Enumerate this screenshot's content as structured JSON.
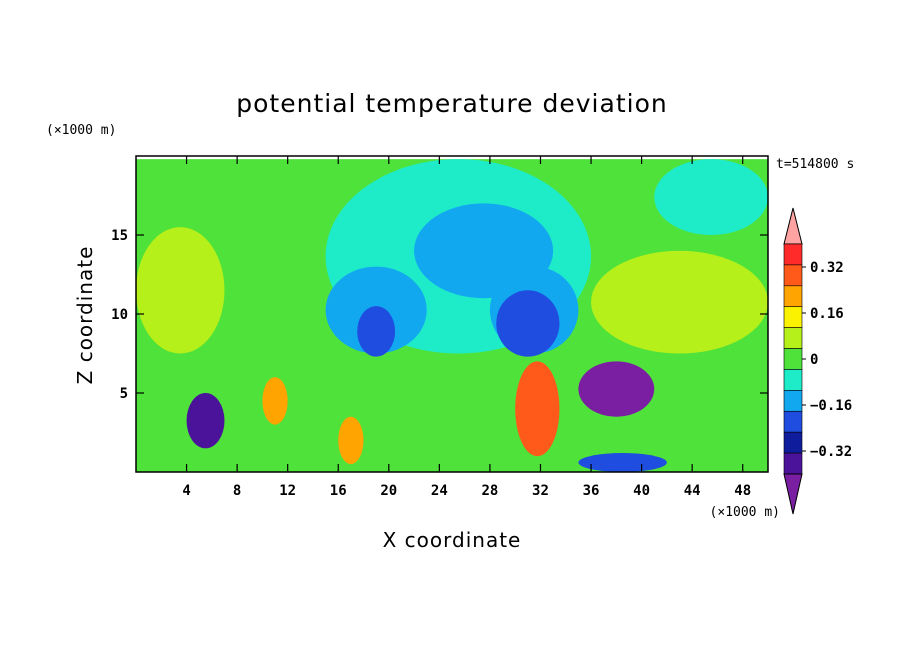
{
  "chart_data": {
    "type": "heatmap",
    "title": "potential temperature deviation",
    "xlabel": "X coordinate",
    "ylabel": "Z coordinate",
    "x_unit": "(×1000 m)",
    "y_unit": "(×1000 m)",
    "time_label": "t=514800 s",
    "xlim": [
      0,
      50
    ],
    "ylim": [
      0,
      20
    ],
    "x_ticks": [
      4,
      8,
      12,
      16,
      20,
      24,
      28,
      32,
      36,
      40,
      44,
      48
    ],
    "y_ticks": [
      5,
      10,
      15
    ],
    "colorbar": {
      "levels": [
        -0.4,
        -0.32,
        -0.24,
        -0.16,
        -0.08,
        0,
        0.08,
        0.16,
        0.24,
        0.32,
        0.4
      ],
      "tick_labels": [
        "0.32",
        "0.16",
        "0",
        "−0.16",
        "−0.32"
      ],
      "tick_values": [
        0.32,
        0.16,
        0,
        -0.16,
        -0.32
      ],
      "colors": [
        "#7a1fa2",
        "#4a1399",
        "#0f1d9c",
        "#1f4de0",
        "#12a8f0",
        "#1eecc8",
        "#4fe23a",
        "#b6f01a",
        "#fbf200",
        "#ffa400",
        "#ff5a1a",
        "#ff2a2a",
        "#ffa3a3"
      ]
    },
    "regions": [
      {
        "level": 0.08,
        "x": [
          0,
          50
        ],
        "z": [
          0,
          19.8
        ]
      },
      {
        "level": 0.16,
        "x": [
          0,
          7
        ],
        "z": [
          7.5,
          15.5
        ]
      },
      {
        "level": 0.16,
        "x": [
          36,
          50
        ],
        "z": [
          7.5,
          14
        ]
      },
      {
        "level": 0,
        "x": [
          15,
          36
        ],
        "z": [
          7.5,
          19.8
        ]
      },
      {
        "level": 0,
        "x": [
          41,
          50
        ],
        "z": [
          15,
          19.8
        ]
      },
      {
        "level": -0.08,
        "x": [
          22,
          33
        ],
        "z": [
          11,
          17
        ]
      },
      {
        "level": -0.08,
        "x": [
          15,
          23
        ],
        "z": [
          7.5,
          13
        ]
      },
      {
        "level": -0.08,
        "x": [
          28,
          35
        ],
        "z": [
          7.5,
          13
        ]
      },
      {
        "level": -0.16,
        "x": [
          17.5,
          20.5
        ],
        "z": [
          7.3,
          10.5
        ]
      },
      {
        "level": -0.16,
        "x": [
          28.5,
          33.5
        ],
        "z": [
          7.3,
          11.5
        ]
      },
      {
        "level": -0.4,
        "x": [
          35,
          41
        ],
        "z": [
          3.5,
          7
        ]
      },
      {
        "level": 0.4,
        "x": [
          30,
          33.5
        ],
        "z": [
          1,
          7
        ]
      },
      {
        "level": 0.32,
        "x": [
          10,
          12
        ],
        "z": [
          3,
          6
        ]
      },
      {
        "level": 0.32,
        "x": [
          16,
          18
        ],
        "z": [
          0.5,
          3.5
        ]
      },
      {
        "level": -0.32,
        "x": [
          4,
          7
        ],
        "z": [
          1.5,
          5
        ]
      },
      {
        "level": -0.16,
        "x": [
          35,
          42
        ],
        "z": [
          0,
          1.2
        ]
      }
    ]
  }
}
